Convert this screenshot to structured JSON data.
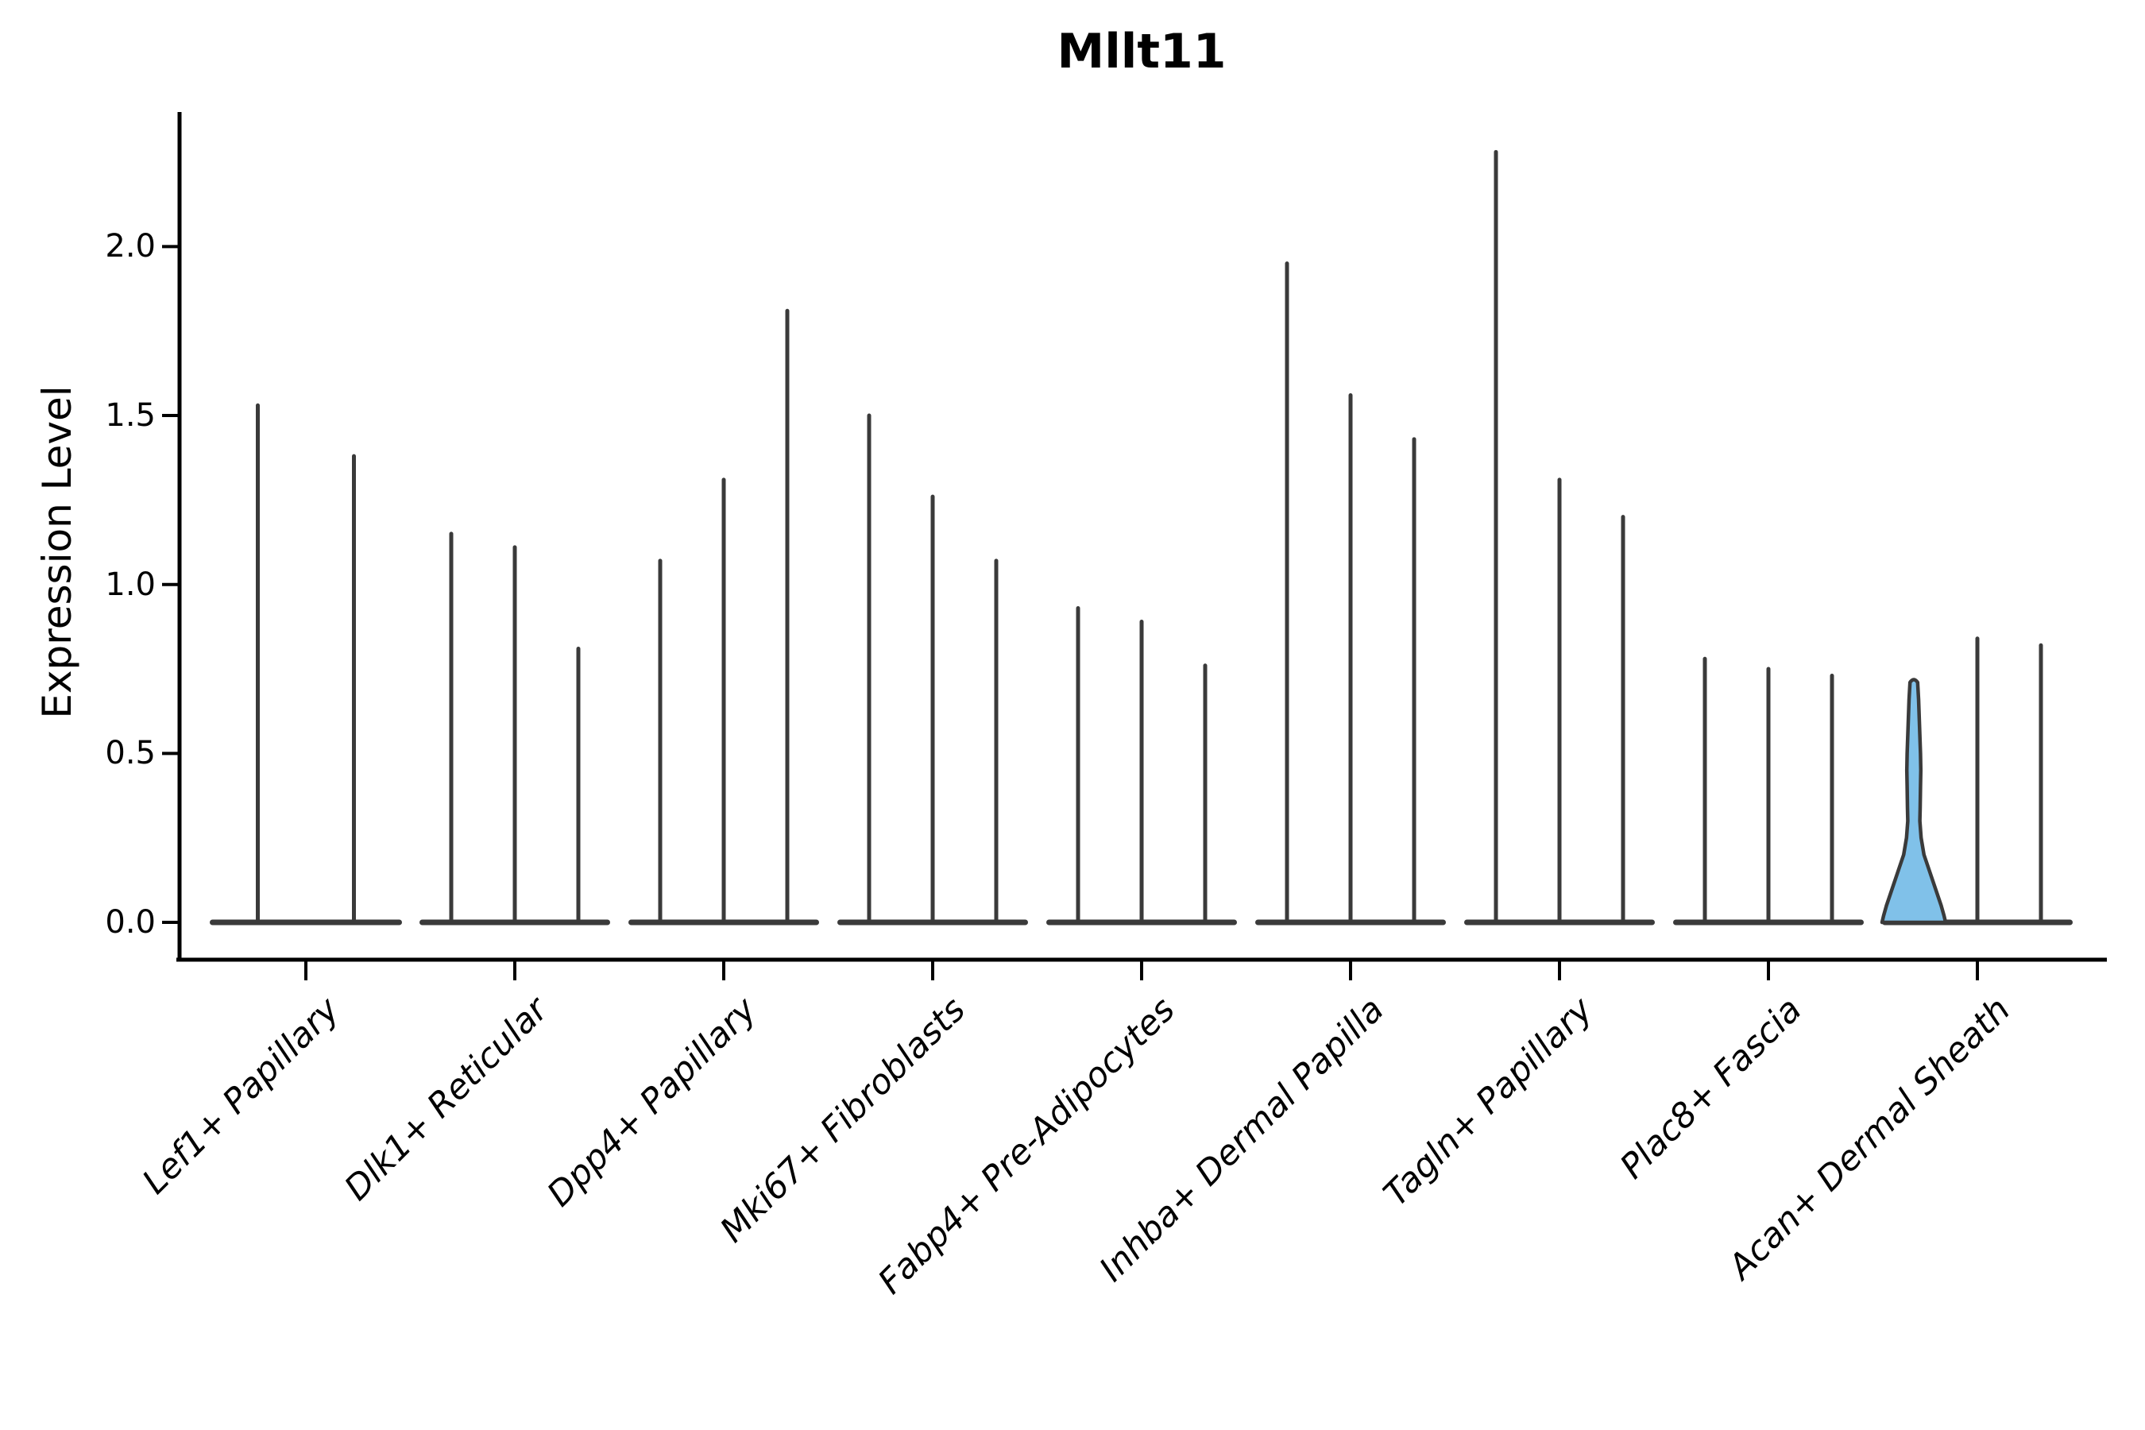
{
  "figure": {
    "title": "Mllt11",
    "y_axis": {
      "label": "Expression Level",
      "tick_labels": [
        "0.0",
        "0.5",
        "1.0",
        "1.5",
        "2.0"
      ],
      "tick_values": [
        0.0,
        0.5,
        1.0,
        1.5,
        2.0
      ]
    }
  },
  "chart_data": {
    "type": "violin",
    "title": "Mllt11",
    "ylabel": "Expression Level",
    "ylim": [
      -0.11,
      2.39
    ],
    "yticks": [
      0.0,
      0.5,
      1.0,
      1.5,
      2.0
    ],
    "grid": false,
    "legend": "none",
    "description": "Violin plot of Mllt11 expression; each cell-type group contains narrow spike-like violins (near-zero density bodies with tall thin maxima). One violin in Acan+ Dermal Sheath is highlighted light blue with a visible density bell near zero.",
    "categories": [
      "Lef1+ Papillary",
      "Dlk1+ Reticular",
      "Dpp4+ Papillary",
      "Mki67+ Fibroblasts",
      "Fabp4+ Pre-Adipocytes",
      "Inhba+ Dermal Papilla",
      "Tagln+ Papillary",
      "Plac8+ Fascia",
      "Acan+ Dermal Sheath"
    ],
    "groups": [
      {
        "category": "Lef1+ Papillary",
        "violin_maxima": [
          1.53,
          1.38
        ]
      },
      {
        "category": "Dlk1+ Reticular",
        "violin_maxima": [
          1.15,
          1.11,
          0.81
        ]
      },
      {
        "category": "Dpp4+ Papillary",
        "violin_maxima": [
          1.07,
          1.31,
          1.81
        ]
      },
      {
        "category": "Mki67+ Fibroblasts",
        "violin_maxima": [
          1.5,
          1.26,
          1.07
        ]
      },
      {
        "category": "Fabp4+ Pre-Adipocytes",
        "violin_maxima": [
          0.93,
          0.89,
          0.76
        ]
      },
      {
        "category": "Inhba+ Dermal Papilla",
        "violin_maxima": [
          1.95,
          1.56,
          1.43
        ]
      },
      {
        "category": "Tagln+ Papillary",
        "violin_maxima": [
          2.28,
          1.31,
          1.2
        ]
      },
      {
        "category": "Plac8+ Fascia",
        "violin_maxima": [
          0.78,
          0.75,
          0.73
        ]
      },
      {
        "category": "Acan+ Dermal Sheath",
        "violin_maxima": [
          0.71,
          0.84,
          0.82
        ],
        "highlighted_violin": {
          "index": 0,
          "max": 0.71,
          "profile": [
            [
              0.71,
              0.12
            ],
            [
              0.66,
              0.15
            ],
            [
              0.58,
              0.18
            ],
            [
              0.5,
              0.21
            ],
            [
              0.45,
              0.22
            ],
            [
              0.4,
              0.21
            ],
            [
              0.34,
              0.2
            ],
            [
              0.3,
              0.19
            ],
            [
              0.25,
              0.23
            ],
            [
              0.2,
              0.32
            ],
            [
              0.15,
              0.5
            ],
            [
              0.1,
              0.68
            ],
            [
              0.05,
              0.86
            ],
            [
              0.02,
              0.95
            ],
            [
              0.0,
              1.0
            ]
          ]
        }
      }
    ],
    "style": {
      "violin_color": "#3A3A3A",
      "highlight_fill": "#80C1E9",
      "axis_color": "#000000",
      "background": "#FFFFFF"
    }
  }
}
